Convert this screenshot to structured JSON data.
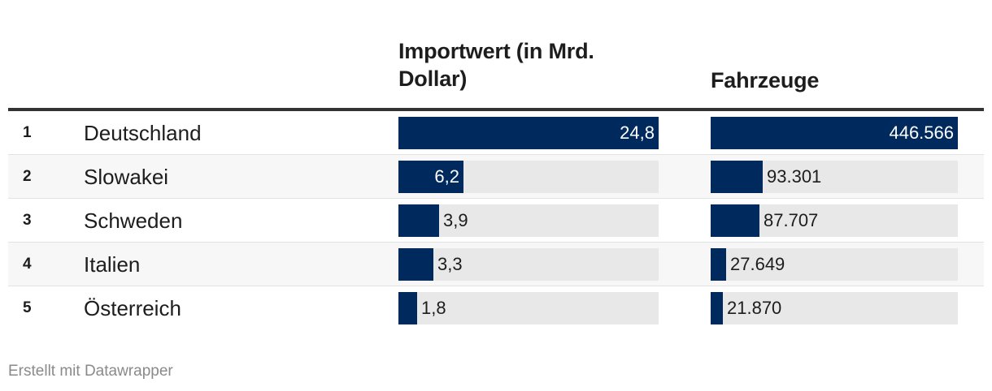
{
  "columns": {
    "import_header": "Importwert (in Mrd. Dollar)",
    "vehicles_header": "Fahrzeuge"
  },
  "footer": "Erstellt mit Datawrapper",
  "colors": {
    "bar": "#002a5e",
    "track": "#e8e8e8",
    "rule": "#333333"
  },
  "chart_data": {
    "type": "table",
    "columns": [
      "",
      "",
      "Importwert (in Mrd. Dollar)",
      "Fahrzeuge"
    ],
    "rows": [
      {
        "rank": "1",
        "country": "Deutschland",
        "import_value": 24.8,
        "import_label": "24,8",
        "vehicles": 446566,
        "vehicles_label": "446.566"
      },
      {
        "rank": "2",
        "country": "Slowakei",
        "import_value": 6.2,
        "import_label": "6,2",
        "vehicles": 93301,
        "vehicles_label": "93.301"
      },
      {
        "rank": "3",
        "country": "Schweden",
        "import_value": 3.9,
        "import_label": "3,9",
        "vehicles": 87707,
        "vehicles_label": "87.707"
      },
      {
        "rank": "4",
        "country": "Italien",
        "import_value": 3.3,
        "import_label": "3,3",
        "vehicles": 27649,
        "vehicles_label": "27.649"
      },
      {
        "rank": "5",
        "country": "Österreich",
        "import_value": 1.8,
        "import_label": "1,8",
        "vehicles": 21870,
        "vehicles_label": "21.870"
      }
    ],
    "import_max": 24.8,
    "vehicles_max": 446566
  }
}
